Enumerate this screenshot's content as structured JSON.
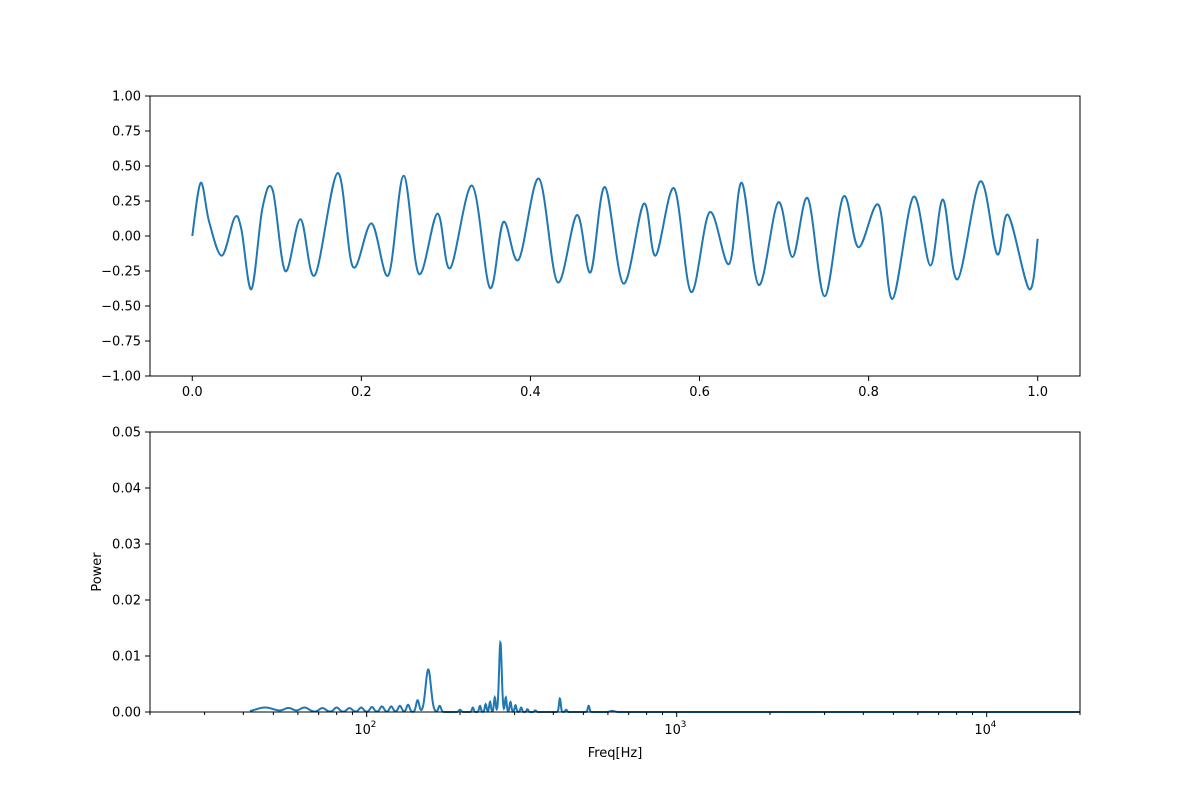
{
  "chart_data": [
    {
      "type": "line",
      "title": "",
      "xlabel": "",
      "ylabel": "",
      "xlim": [
        -0.05,
        1.05
      ],
      "ylim": [
        -1.0,
        1.0
      ],
      "xticks": [
        0.0,
        0.2,
        0.4,
        0.6,
        0.8,
        1.0
      ],
      "xtick_labels": [
        "0.0",
        "0.2",
        "0.4",
        "0.6",
        "0.8",
        "1.0"
      ],
      "yticks": [
        -1.0,
        -0.75,
        -0.5,
        -0.25,
        0.0,
        0.25,
        0.5,
        0.75,
        1.0
      ],
      "ytick_labels": [
        "−1.00",
        "−0.75",
        "−0.50",
        "−0.25",
        "0.00",
        "0.25",
        "0.50",
        "0.75",
        "1.00"
      ],
      "grid": false,
      "color": "#1f77b4",
      "series": [
        {
          "x": [
            0.0,
            0.01,
            0.02,
            0.035,
            0.05,
            0.058,
            0.07,
            0.083,
            0.095,
            0.11,
            0.128,
            0.145,
            0.172,
            0.19,
            0.212,
            0.232,
            0.25,
            0.268,
            0.29,
            0.305,
            0.331,
            0.352,
            0.368,
            0.386,
            0.41,
            0.432,
            0.455,
            0.471,
            0.488,
            0.51,
            0.534,
            0.548,
            0.57,
            0.59,
            0.612,
            0.635,
            0.65,
            0.67,
            0.693,
            0.71,
            0.728,
            0.748,
            0.77,
            0.788,
            0.812,
            0.828,
            0.853,
            0.873,
            0.888,
            0.905,
            0.932,
            0.952,
            0.965,
            0.99,
            1.0
          ],
          "y": [
            0.0,
            0.38,
            0.1,
            -0.14,
            0.13,
            0.05,
            -0.38,
            0.2,
            0.33,
            -0.25,
            0.12,
            -0.28,
            0.45,
            -0.22,
            0.09,
            -0.28,
            0.43,
            -0.27,
            0.16,
            -0.23,
            0.36,
            -0.37,
            0.1,
            -0.17,
            0.41,
            -0.33,
            0.15,
            -0.26,
            0.35,
            -0.34,
            0.23,
            -0.14,
            0.34,
            -0.4,
            0.17,
            -0.2,
            0.38,
            -0.35,
            0.24,
            -0.15,
            0.27,
            -0.43,
            0.28,
            -0.08,
            0.22,
            -0.45,
            0.28,
            -0.21,
            0.26,
            -0.31,
            0.39,
            -0.13,
            0.15,
            -0.38,
            -0.02
          ]
        }
      ]
    },
    {
      "type": "line",
      "title": "",
      "xlabel": "Freq[Hz]",
      "ylabel": "Power",
      "xscale": "log",
      "xlim": [
        20,
        20000
      ],
      "ylim": [
        0.0,
        0.05
      ],
      "xticks": [
        100,
        1000,
        10000
      ],
      "xtick_labels": [
        "10",
        "10",
        "10"
      ],
      "xtick_exponents": [
        "2",
        "3",
        "4"
      ],
      "yticks": [
        0.0,
        0.01,
        0.02,
        0.03,
        0.04,
        0.05
      ],
      "ytick_labels": [
        "0.00",
        "0.01",
        "0.02",
        "0.03",
        "0.04",
        "0.05"
      ],
      "grid": false,
      "color": "#1f77b4",
      "series": [
        {
          "peaks": [
            {
              "f": 47,
              "p": 0.0008,
              "w": 0.04
            },
            {
              "f": 56,
              "p": 0.0007,
              "w": 0.02
            },
            {
              "f": 63,
              "p": 0.0008,
              "w": 0.02
            },
            {
              "f": 72,
              "p": 0.0007,
              "w": 0.015
            },
            {
              "f": 80,
              "p": 0.0008,
              "w": 0.012
            },
            {
              "f": 88,
              "p": 0.0007,
              "w": 0.012
            },
            {
              "f": 96,
              "p": 0.0008,
              "w": 0.01
            },
            {
              "f": 104,
              "p": 0.0009,
              "w": 0.009
            },
            {
              "f": 112,
              "p": 0.001,
              "w": 0.009
            },
            {
              "f": 120,
              "p": 0.001,
              "w": 0.008
            },
            {
              "f": 128,
              "p": 0.0011,
              "w": 0.008
            },
            {
              "f": 136,
              "p": 0.0013,
              "w": 0.007
            },
            {
              "f": 146,
              "p": 0.0021,
              "w": 0.007
            },
            {
              "f": 158,
              "p": 0.0076,
              "w": 0.012
            },
            {
              "f": 172,
              "p": 0.0011,
              "w": 0.006
            },
            {
              "f": 200,
              "p": 0.0004,
              "w": 0.005
            },
            {
              "f": 220,
              "p": 0.0008,
              "w": 0.004
            },
            {
              "f": 232,
              "p": 0.0011,
              "w": 0.004
            },
            {
              "f": 242,
              "p": 0.0014,
              "w": 0.004
            },
            {
              "f": 250,
              "p": 0.0018,
              "w": 0.004
            },
            {
              "f": 259,
              "p": 0.0026,
              "w": 0.004
            },
            {
              "f": 270,
              "p": 0.0124,
              "w": 0.006
            },
            {
              "f": 281,
              "p": 0.0026,
              "w": 0.004
            },
            {
              "f": 291,
              "p": 0.0018,
              "w": 0.004
            },
            {
              "f": 302,
              "p": 0.0012,
              "w": 0.004
            },
            {
              "f": 315,
              "p": 0.0008,
              "w": 0.004
            },
            {
              "f": 330,
              "p": 0.0005,
              "w": 0.004
            },
            {
              "f": 350,
              "p": 0.0003,
              "w": 0.004
            },
            {
              "f": 420,
              "p": 0.0024,
              "w": 0.004
            },
            {
              "f": 440,
              "p": 0.0004,
              "w": 0.004
            },
            {
              "f": 520,
              "p": 0.0011,
              "w": 0.004
            },
            {
              "f": 620,
              "p": 0.0002,
              "w": 0.01
            }
          ],
          "f_start": 42
        }
      ]
    }
  ]
}
